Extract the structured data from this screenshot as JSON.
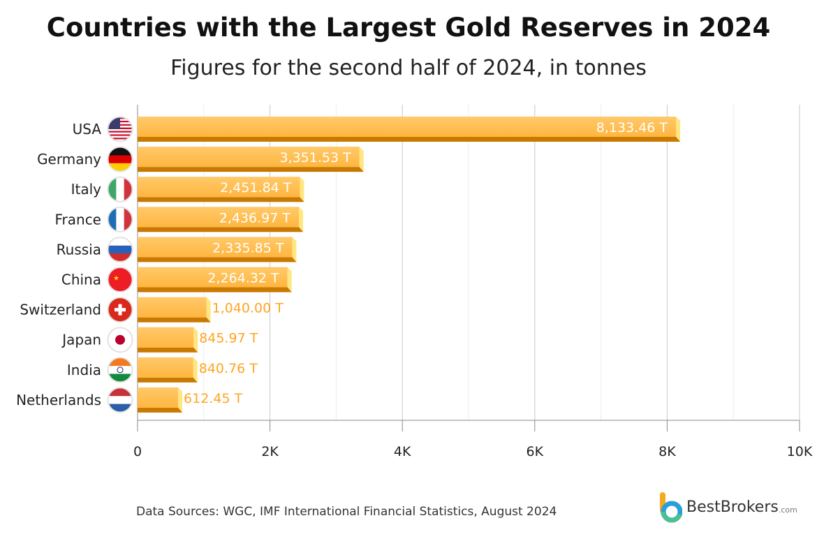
{
  "title": "Countries with the Largest Gold Reserves in 2024",
  "subtitle": "Figures for the second half of 2024, in tonnes",
  "source": "Data Sources: WGC, IMF International Financial Statistics, August 2024",
  "logo": {
    "name": "BestBrokers",
    "domain": ".com"
  },
  "colors": {
    "bar": "#ffb640",
    "bar_bottom": "#c97800",
    "bar_end": "#ffe680",
    "label_outside": "#ffa520",
    "label_inside": "#ffffff"
  },
  "chart_data": {
    "type": "bar",
    "orientation": "horizontal",
    "categories": [
      "USA",
      "Germany",
      "Italy",
      "France",
      "Russia",
      "China",
      "Switzerland",
      "Japan",
      "India",
      "Netherlands"
    ],
    "values": [
      8133.46,
      3351.53,
      2451.84,
      2436.97,
      2335.85,
      2264.32,
      1040.0,
      845.97,
      840.76,
      612.45
    ],
    "data_labels": [
      "8,133.46 T",
      "3,351.53 T",
      "2,451.84 T",
      "2,436.97 T",
      "2,335.85 T",
      "2,264.32 T",
      "1,040.00 T",
      "845.97 T",
      "840.76 T",
      "612.45 T"
    ],
    "flags": [
      "usa-flag",
      "germany-flag",
      "italy-flag",
      "france-flag",
      "russia-flag",
      "china-flag",
      "switzerland-flag",
      "japan-flag",
      "india-flag",
      "netherlands-flag"
    ],
    "xlim": [
      0,
      10000
    ],
    "xticks": [
      0,
      2000,
      4000,
      6000,
      8000,
      10000
    ],
    "xtick_labels": [
      "0",
      "2K",
      "4K",
      "6K",
      "8K",
      "10K"
    ],
    "grid": true,
    "xlabel": "",
    "ylabel": ""
  }
}
